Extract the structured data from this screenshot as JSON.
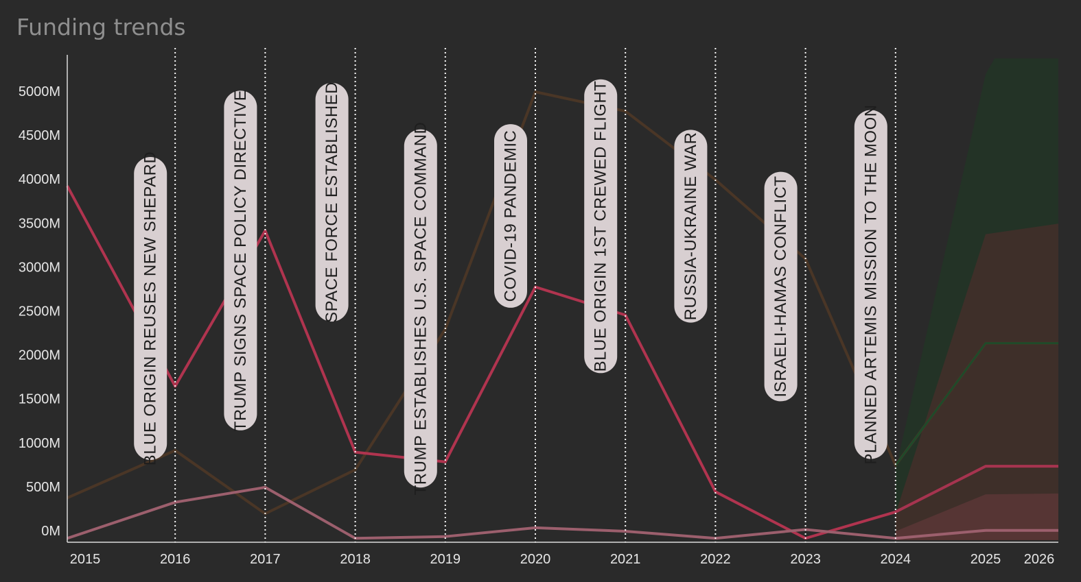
{
  "title": "Funding trends",
  "colors": {
    "background": "#2a2a2a",
    "axis": "#dcdcdc",
    "event_line": "#ffffff",
    "annotation_bg": "#d8cfd1",
    "annotation_text": "#1e1e1e"
  },
  "chart_data": {
    "type": "line",
    "x_ticks": [
      2015,
      2016,
      2017,
      2018,
      2019,
      2020,
      2021,
      2022,
      2023,
      2024,
      2025,
      2026
    ],
    "xlim": [
      2014.8,
      2026
    ],
    "y_ticks": [
      {
        "value": 0,
        "label": "0M"
      },
      {
        "value": 500,
        "label": "500M"
      },
      {
        "value": 1000,
        "label": "1000M"
      },
      {
        "value": 1500,
        "label": "1500M"
      },
      {
        "value": 2000,
        "label": "2000M"
      },
      {
        "value": 2500,
        "label": "2500M"
      },
      {
        "value": 3000,
        "label": "3000M"
      },
      {
        "value": 3500,
        "label": "3500M"
      },
      {
        "value": 4000,
        "label": "4000M"
      },
      {
        "value": 4500,
        "label": "4500M"
      },
      {
        "value": 5000,
        "label": "5000M"
      }
    ],
    "ylim": [
      -120,
      5400
    ],
    "series": [
      {
        "color": "#4a3626",
        "width": 4,
        "points": [
          [
            2014.8,
            380
          ],
          [
            2016,
            920
          ],
          [
            2017,
            200
          ],
          [
            2018,
            700
          ],
          [
            2019,
            2300
          ],
          [
            2020,
            5000
          ],
          [
            2021,
            4780
          ],
          [
            2022,
            4000
          ],
          [
            2023,
            3100
          ],
          [
            2024,
            750
          ],
          [
            2025,
            2140
          ],
          [
            2026,
            2140
          ]
        ]
      },
      {
        "color": "#b0344f",
        "width": 4,
        "points": [
          [
            2014.8,
            3930
          ],
          [
            2016,
            1650
          ],
          [
            2017,
            3420
          ],
          [
            2018,
            900
          ],
          [
            2019,
            790
          ],
          [
            2020,
            2780
          ],
          [
            2021,
            2460
          ],
          [
            2022,
            450
          ],
          [
            2023,
            -80
          ],
          [
            2024,
            220
          ],
          [
            2025,
            740
          ],
          [
            2026,
            740
          ]
        ]
      },
      {
        "color": "#9c5f6d",
        "width": 4,
        "points": [
          [
            2014.8,
            -80
          ],
          [
            2016,
            330
          ],
          [
            2017,
            500
          ],
          [
            2018,
            -80
          ],
          [
            2019,
            -60
          ],
          [
            2020,
            40
          ],
          [
            2021,
            0
          ],
          [
            2022,
            -80
          ],
          [
            2023,
            20
          ],
          [
            2024,
            -80
          ],
          [
            2025,
            10
          ],
          [
            2026,
            10
          ]
        ]
      },
      {
        "color": "#1f4a2a",
        "width": 3,
        "points": [
          [
            2024,
            750
          ],
          [
            2025,
            2140
          ],
          [
            2026,
            2140
          ]
        ]
      },
      {
        "color": "#a53450",
        "width": 3,
        "points": [
          [
            2024,
            220
          ],
          [
            2025,
            740
          ],
          [
            2026,
            740
          ]
        ]
      }
    ],
    "forecast_bands": [
      {
        "color": "#1d3a22",
        "opacity": 0.55,
        "upper": [
          [
            2024,
            700
          ],
          [
            2025,
            5200
          ],
          [
            2025.1,
            5380
          ],
          [
            2026,
            5380
          ]
        ],
        "lower": [
          [
            2024,
            -100
          ],
          [
            2026,
            -100
          ]
        ]
      },
      {
        "color": "#4a2d2b",
        "opacity": 0.7,
        "upper": [
          [
            2024,
            200
          ],
          [
            2025,
            3380
          ],
          [
            2026,
            3500
          ]
        ],
        "lower": [
          [
            2024,
            -100
          ],
          [
            2026,
            -100
          ]
        ]
      },
      {
        "color": "#6a3a3e",
        "opacity": 0.55,
        "upper": [
          [
            2024,
            0
          ],
          [
            2025,
            420
          ],
          [
            2026,
            430
          ]
        ],
        "lower": [
          [
            2024,
            -100
          ],
          [
            2026,
            -100
          ]
        ]
      }
    ],
    "events": [
      {
        "year": 2016,
        "label": "BLUE ORIGIN REUSES NEW SHEPARD"
      },
      {
        "year": 2017,
        "label": "TRUMP SIGNS SPACE POLICY DIRECTIVE"
      },
      {
        "year": 2018,
        "label": "SPACE FORCE ESTABLISHED"
      },
      {
        "year": 2019,
        "label": "TRUMP ESTABLISHES U.S. SPACE COMMAND"
      },
      {
        "year": 2020,
        "label": "COVID-19 PANDEMIC"
      },
      {
        "year": 2021,
        "label": "BLUE ORIGIN 1ST CREWED FLIGHT"
      },
      {
        "year": 2022,
        "label": "RUSSIA-UKRAINE WAR"
      },
      {
        "year": 2023,
        "label": "ISRAELI-HAMAS CONFLICT"
      },
      {
        "year": 2024,
        "label": "PLANNED ARTEMIS MISSION TO THE MOON"
      }
    ]
  }
}
